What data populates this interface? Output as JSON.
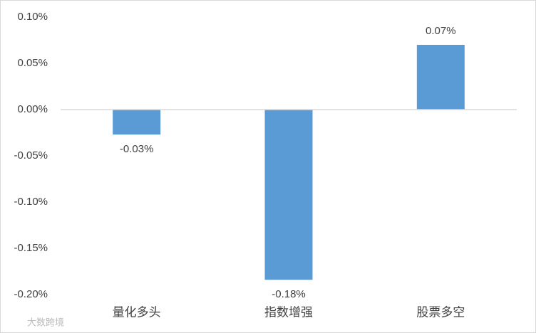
{
  "chart_data": {
    "type": "bar",
    "categories": [
      "量化多头",
      "指数增强",
      "股票多空"
    ],
    "values": [
      -0.027,
      -0.184,
      0.07
    ],
    "value_labels": [
      "-0.03%",
      "-0.18%",
      "0.07%"
    ],
    "color": "#5b9bd5",
    "ylim": [
      -0.2,
      0.1
    ],
    "yticks": [
      {
        "value": 0.1,
        "label": "0.10%"
      },
      {
        "value": 0.05,
        "label": "0.05%"
      },
      {
        "value": 0,
        "label": "0.00%"
      },
      {
        "value": -0.05,
        "label": "-0.05%"
      },
      {
        "value": -0.1,
        "label": "-0.10%"
      },
      {
        "value": -0.15,
        "label": "-0.15%"
      },
      {
        "value": -0.2,
        "label": "-0.20%"
      }
    ],
    "grid": false,
    "watermark": "大数跨境"
  }
}
